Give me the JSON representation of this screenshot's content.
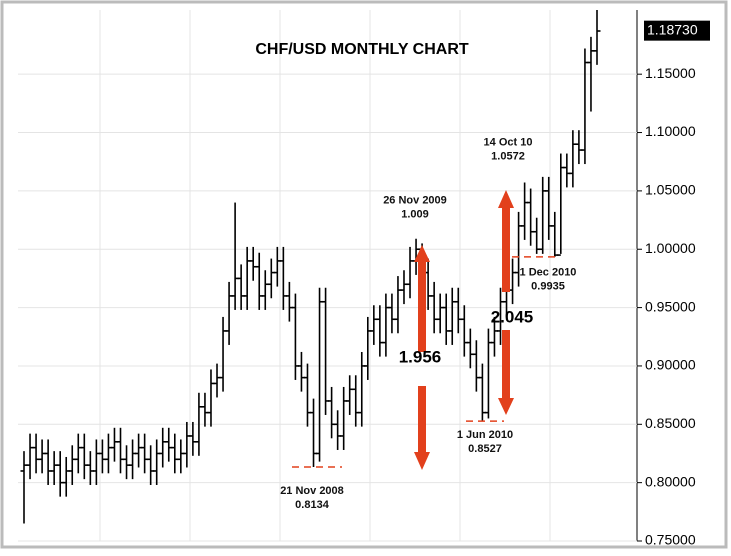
{
  "chart_data": {
    "type": "ohlc",
    "title": "CHF/USD MONTHLY CHART",
    "color": "#000000",
    "ylim": [
      0.75,
      1.205
    ],
    "yticks": [
      {
        "value": 0.75,
        "label": "0.75000"
      },
      {
        "value": 0.8,
        "label": "0.80000"
      },
      {
        "value": 0.85,
        "label": "0.85000"
      },
      {
        "value": 0.9,
        "label": "0.90000"
      },
      {
        "value": 0.95,
        "label": "0.95000"
      },
      {
        "value": 1.0,
        "label": "1.00000"
      },
      {
        "value": 1.05,
        "label": "1.05000"
      },
      {
        "value": 1.1,
        "label": "1.10000"
      },
      {
        "value": 1.15,
        "label": "1.15000"
      }
    ],
    "last_price": {
      "value": 1.1873,
      "label": "1.18730"
    },
    "open": [
      0.81,
      0.815,
      0.83,
      0.82,
      0.825,
      0.81,
      0.815,
      0.8,
      0.81,
      0.82,
      0.83,
      0.815,
      0.81,
      0.825,
      0.82,
      0.83,
      0.835,
      0.82,
      0.815,
      0.825,
      0.83,
      0.82,
      0.81,
      0.825,
      0.835,
      0.83,
      0.82,
      0.825,
      0.84,
      0.835,
      0.865,
      0.86,
      0.885,
      0.89,
      0.93,
      0.96,
      0.975,
      0.96,
      0.99,
      0.985,
      0.96,
      0.97,
      0.98,
      0.99,
      0.96,
      0.95,
      0.9,
      0.89,
      0.86,
      0.825,
      0.955,
      0.87,
      0.85,
      0.84,
      0.87,
      0.88,
      0.86,
      0.9,
      0.93,
      0.94,
      0.92,
      0.95,
      0.94,
      0.965,
      0.97,
      0.99,
      1.0,
      0.98,
      0.96,
      0.94,
      0.95,
      0.93,
      0.955,
      0.94,
      0.92,
      0.91,
      0.89,
      0.86,
      0.92,
      0.93,
      0.955,
      0.965,
      0.98,
      1.02,
      1.04,
      1.015,
      1.0,
      1.05,
      1.02,
      0.995,
      1.07,
      1.065,
      1.09,
      1.085,
      1.16,
      1.17
    ],
    "high": [
      0.827,
      0.842,
      0.842,
      0.837,
      0.837,
      0.827,
      0.827,
      0.822,
      0.832,
      0.842,
      0.842,
      0.827,
      0.837,
      0.837,
      0.842,
      0.847,
      0.847,
      0.832,
      0.837,
      0.842,
      0.842,
      0.832,
      0.837,
      0.847,
      0.847,
      0.842,
      0.837,
      0.852,
      0.852,
      0.877,
      0.877,
      0.897,
      0.902,
      0.942,
      0.972,
      1.04,
      0.987,
      1.002,
      1.002,
      0.997,
      0.982,
      0.992,
      1.002,
      1.002,
      0.972,
      0.962,
      0.912,
      0.902,
      0.872,
      0.967,
      0.967,
      0.882,
      0.862,
      0.882,
      0.892,
      0.892,
      0.912,
      0.942,
      0.952,
      0.952,
      0.962,
      0.962,
      0.977,
      0.982,
      1.002,
      1.009,
      1.005,
      0.992,
      0.972,
      0.962,
      0.962,
      0.967,
      0.967,
      0.952,
      0.932,
      0.922,
      0.902,
      0.932,
      0.942,
      0.967,
      0.977,
      0.992,
      1.032,
      1.0572,
      1.052,
      1.027,
      1.062,
      1.062,
      1.032,
      1.082,
      1.082,
      1.102,
      1.102,
      1.172,
      1.182,
      1.205
    ],
    "low": [
      0.765,
      0.803,
      0.808,
      0.808,
      0.798,
      0.798,
      0.788,
      0.788,
      0.798,
      0.808,
      0.803,
      0.798,
      0.798,
      0.808,
      0.808,
      0.818,
      0.808,
      0.803,
      0.803,
      0.813,
      0.808,
      0.798,
      0.798,
      0.813,
      0.818,
      0.808,
      0.808,
      0.813,
      0.823,
      0.823,
      0.848,
      0.848,
      0.873,
      0.878,
      0.918,
      0.948,
      0.948,
      0.948,
      0.973,
      0.948,
      0.948,
      0.958,
      0.968,
      0.948,
      0.938,
      0.888,
      0.878,
      0.848,
      0.8134,
      0.818,
      0.858,
      0.838,
      0.828,
      0.828,
      0.858,
      0.848,
      0.848,
      0.888,
      0.918,
      0.908,
      0.908,
      0.928,
      0.928,
      0.953,
      0.958,
      0.978,
      0.968,
      0.948,
      0.928,
      0.928,
      0.918,
      0.918,
      0.928,
      0.908,
      0.898,
      0.878,
      0.8527,
      0.855,
      0.908,
      0.918,
      0.943,
      0.953,
      0.968,
      1.008,
      1.003,
      0.996,
      0.996,
      1.008,
      0.9935,
      0.996,
      1.053,
      1.053,
      1.073,
      1.073,
      1.118,
      1.158
    ],
    "close": [
      0.815,
      0.83,
      0.82,
      0.825,
      0.81,
      0.815,
      0.8,
      0.81,
      0.82,
      0.83,
      0.815,
      0.81,
      0.825,
      0.82,
      0.83,
      0.835,
      0.82,
      0.815,
      0.825,
      0.83,
      0.82,
      0.81,
      0.825,
      0.835,
      0.83,
      0.82,
      0.825,
      0.84,
      0.835,
      0.865,
      0.86,
      0.885,
      0.89,
      0.93,
      0.96,
      0.975,
      0.96,
      0.99,
      0.985,
      0.96,
      0.97,
      0.98,
      0.99,
      0.96,
      0.95,
      0.9,
      0.89,
      0.86,
      0.825,
      0.955,
      0.87,
      0.85,
      0.84,
      0.87,
      0.88,
      0.86,
      0.9,
      0.93,
      0.94,
      0.92,
      0.95,
      0.94,
      0.965,
      0.97,
      0.99,
      1.0,
      0.98,
      0.96,
      0.94,
      0.95,
      0.93,
      0.955,
      0.94,
      0.92,
      0.91,
      0.89,
      0.86,
      0.92,
      0.93,
      0.955,
      0.965,
      0.98,
      1.02,
      1.04,
      1.015,
      1.0,
      1.05,
      1.02,
      0.995,
      1.07,
      1.065,
      1.09,
      1.085,
      1.16,
      1.17,
      1.187
    ],
    "annotations": [
      {
        "text": "21 Nov  2008",
        "value": 0.8134
      },
      {
        "text": "26 Nov  2009",
        "value": 1.009
      },
      {
        "text": "14 Oct 10",
        "value": 1.0572
      },
      {
        "text": "1 Jun 2010",
        "value": 0.8527
      },
      {
        "text": "1 Dec 2010",
        "value": 0.9935
      }
    ],
    "measures": [
      1.956,
      2.045
    ]
  }
}
